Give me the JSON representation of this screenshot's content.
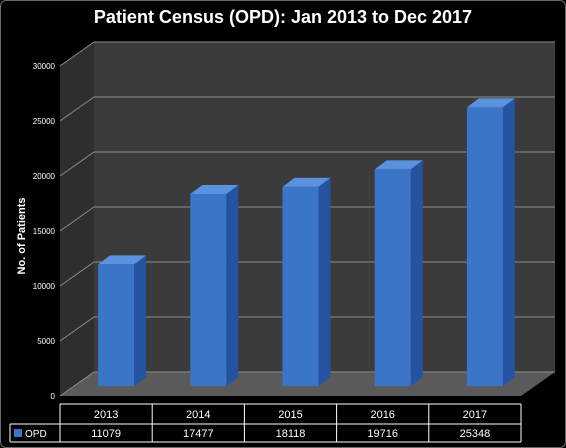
{
  "chart_data": {
    "type": "bar",
    "title": "Patient Census (OPD): Jan 2013 to Dec 2017",
    "xlabel": "",
    "ylabel": "No. of Patients",
    "categories": [
      "2013",
      "2014",
      "2015",
      "2016",
      "2017"
    ],
    "series": [
      {
        "name": "OPD",
        "values": [
          11079,
          17477,
          18118,
          19716,
          25348
        ],
        "color": "#3a75c8"
      }
    ],
    "ylim": [
      0,
      30000
    ],
    "yticks": [
      0,
      5000,
      10000,
      15000,
      20000,
      25000,
      30000
    ],
    "grid": true,
    "legend": "data-table",
    "style_3d": true,
    "colors": {
      "background": "#000000",
      "plot_back": "#3b3b3b",
      "plot_floor": "#5a5a5a",
      "plot_side": "#2e2e2e",
      "gridline": "#8c8c8c",
      "bar_front": "#3a75c8",
      "bar_top": "#5a92e0",
      "bar_side": "#2453a0",
      "text": "#ffffff"
    }
  }
}
